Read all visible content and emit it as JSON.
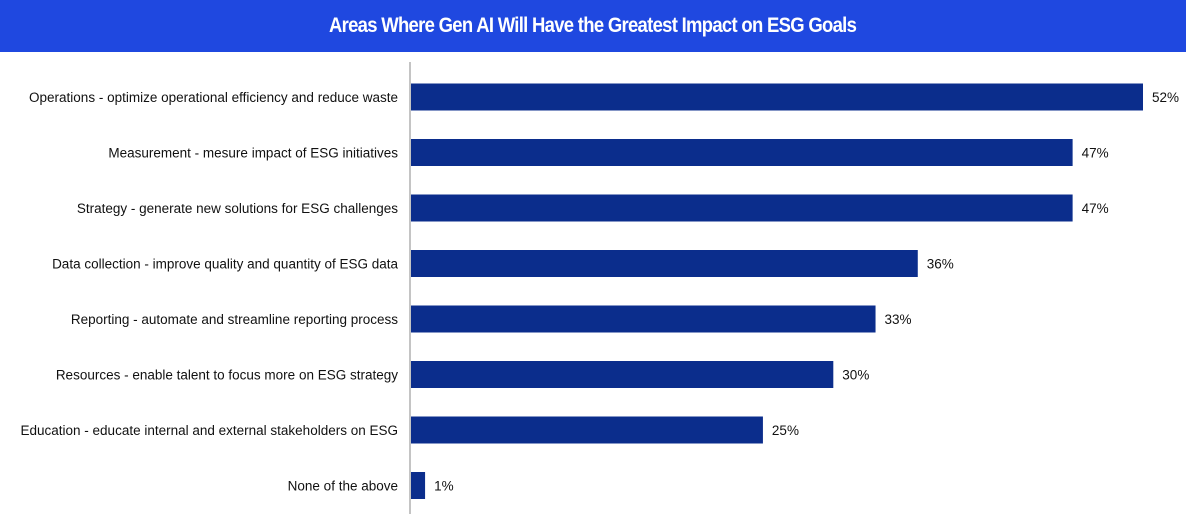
{
  "chart_data": {
    "type": "bar",
    "orientation": "horizontal",
    "title": "Areas Where Gen AI Will Have the Greatest Impact on ESG Goals",
    "categories": [
      "Operations - optimize operational efficiency and reduce waste",
      "Measurement - mesure impact of ESG initiatives",
      "Strategy - generate new solutions for ESG challenges",
      "Data collection - improve quality and quantity of ESG data",
      "Reporting - automate and streamline reporting process",
      "Resources - enable talent to focus more on ESG strategy",
      "Education - educate internal and external stakeholders on ESG",
      "None of the above"
    ],
    "values": [
      52,
      47,
      47,
      36,
      33,
      30,
      25,
      1
    ],
    "value_labels": [
      "52%",
      "47%",
      "47%",
      "36%",
      "33%",
      "30%",
      "25%",
      "1%"
    ],
    "value_unit": "%",
    "xlim": [
      0,
      52
    ],
    "xlabel": "",
    "ylabel": "",
    "grid": false,
    "legend": "none",
    "colors": {
      "bar": "#0b2d8c",
      "title_banner": "#1f48e0",
      "title_text": "#ffffff",
      "axis": "#888888"
    }
  }
}
